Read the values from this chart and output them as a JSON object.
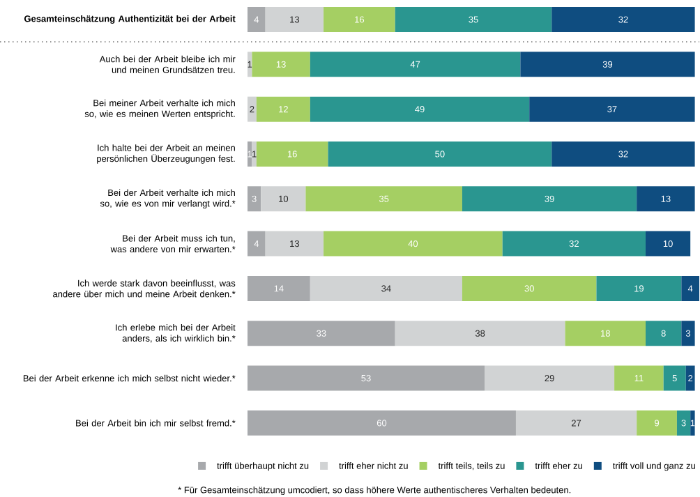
{
  "chart_data": {
    "type": "bar",
    "orientation": "horizontal",
    "stacked": true,
    "data_labels": true,
    "legend": "bottom",
    "categories": [
      "Gesamteinschätzung Authentizität bei der Arbeit",
      "Auch bei der Arbeit bleibe ich mir und meinen Grundsätzen treu.",
      "Bei meiner Arbeit verhalte ich mich so, wie es meinen Werten entspricht.",
      "Ich halte bei der Arbeit an meinen persönlichen Überzeugungen fest.",
      "Bei der Arbeit verhalte ich mich so, wie es von mir verlangt wird.*",
      "Bei der Arbeit muss ich tun, was andere von mir erwarten.*",
      "Ich werde stark davon beeinflusst, was andere über mich und meine Arbeit denken.*",
      "Ich erlebe mich bei der Arbeit anders, als ich wirklich bin.*",
      "Bei der Arbeit erkenne ich mich selbst nicht wieder.*",
      "Bei der Arbeit bin ich mir selbst fremd.*"
    ],
    "series": [
      {
        "name": "trifft überhaupt nicht zu",
        "color": "#a7a9ac",
        "values": [
          4,
          null,
          null,
          1,
          3,
          4,
          14,
          33,
          53,
          60
        ]
      },
      {
        "name": "trifft eher nicht zu",
        "color": "#d1d3d4",
        "values": [
          13,
          1,
          2,
          1,
          10,
          13,
          34,
          38,
          29,
          27
        ]
      },
      {
        "name": "trifft teils, teils zu",
        "color": "#a5cf63",
        "values": [
          16,
          13,
          12,
          16,
          35,
          40,
          30,
          18,
          11,
          9
        ]
      },
      {
        "name": "trifft eher zu",
        "color": "#2a9690",
        "values": [
          35,
          47,
          49,
          50,
          39,
          32,
          19,
          8,
          5,
          3
        ]
      },
      {
        "name": "trifft voll und ganz zu",
        "color": "#0f4d80",
        "values": [
          32,
          39,
          37,
          32,
          13,
          10,
          4,
          3,
          2,
          1
        ]
      }
    ],
    "annotations": [
      "* Für Gesamteinschätzung umcodiert, so dass höhere Werte authentischeres Verhalten bedeuten."
    ]
  }
}
